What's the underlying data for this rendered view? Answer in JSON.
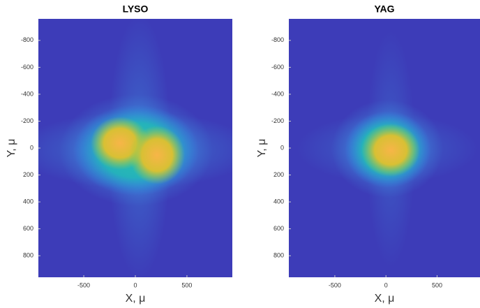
{
  "chart_data": [
    {
      "type": "heatmap",
      "title": "LYSO",
      "xlabel": "X, μ",
      "ylabel": "Y, μ",
      "xlim": [
        -940,
        940
      ],
      "ylim": [
        -960,
        960
      ],
      "y_reversed": true,
      "xticks": [
        -500,
        0,
        500
      ],
      "yticks": [
        -800,
        -600,
        -400,
        -200,
        0,
        200,
        400,
        600,
        800
      ],
      "background": "#3d3cb8"
    },
    {
      "type": "heatmap",
      "title": "YAG",
      "xlabel": "X, μ",
      "ylabel": "Y, μ",
      "xlim": [
        -950,
        920
      ],
      "ylim": [
        -960,
        960
      ],
      "y_reversed": true,
      "xticks": [
        -500,
        0,
        500
      ],
      "yticks": [
        -800,
        -600,
        -400,
        -200,
        0,
        200,
        400,
        600,
        800
      ],
      "background": "#3d3cb8"
    }
  ]
}
